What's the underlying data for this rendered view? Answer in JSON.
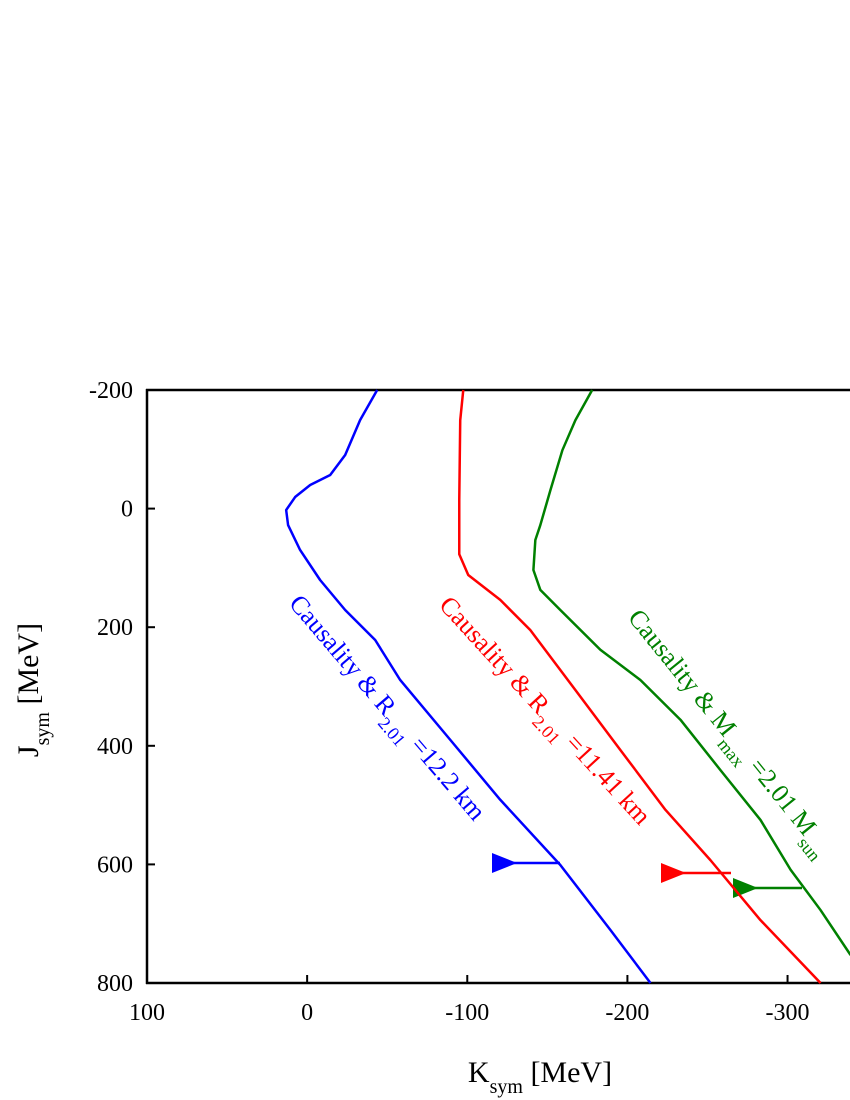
{
  "chart_data": {
    "type": "line",
    "x_label": [
      "K",
      "sym",
      " [MeV]"
    ],
    "y_label": [
      "J",
      "sym",
      " [MeV]"
    ],
    "xlim": [
      100,
      -339
    ],
    "ylim": [
      800,
      -200
    ],
    "xticks": [
      100,
      0,
      -100,
      -200,
      -300
    ],
    "yticks": [
      -200,
      0,
      200,
      400,
      600,
      800
    ],
    "series": [
      {
        "color": "#0000ff",
        "x": [
          -43.75,
          -33.1,
          -23.75,
          -14.4,
          -1.9,
          7.5,
          13.1,
          11.9,
          4.4,
          -8.1,
          -23.75,
          -42.5,
          -58.1,
          -89.4,
          -120.6,
          -158.1,
          -189.4,
          -214.4
        ],
        "values": [
          -200,
          -149.4,
          -90.4,
          -56.6,
          -39.8,
          -19.5,
          2.4,
          27.7,
          69.8,
          120.4,
          171,
          221.6,
          289,
          390,
          491,
          601,
          710.6,
          800
        ]
      },
      {
        "color": "#ff0000",
        "x": [
          -97.5,
          -95.6,
          -95,
          -95,
          -100.6,
          -120.6,
          -139.4,
          -167.5,
          -195.6,
          -223.75,
          -251.9,
          -283.1,
          -320.6
        ],
        "values": [
          -200,
          -149,
          -15.7,
          77,
          112,
          154,
          205,
          306,
          407,
          508,
          593,
          694,
          800
        ]
      },
      {
        "color": "#008000",
        "x": [
          -178,
          -167.5,
          -159.4,
          -151.9,
          -145.6,
          -142.5,
          -141.3,
          -145.6,
          -158.1,
          -183.1,
          -208.1,
          -233.1,
          -258.1,
          -283.1,
          -301.9,
          -320.6,
          -339.4
        ],
        "values": [
          -200,
          -149,
          -98.5,
          -31,
          28,
          53,
          103.5,
          137,
          171,
          238,
          289,
          356,
          441,
          525,
          609,
          677,
          753
        ]
      }
    ],
    "annotations": [
      {
        "color": "#0000ff",
        "parts": [
          "Causality & R",
          "2.01",
          " =12.2 km"
        ]
      },
      {
        "color": "#ff0000",
        "parts": [
          "Causality & R",
          "2.01",
          " =11.41 km"
        ]
      },
      {
        "color": "#008000",
        "parts": [
          "Causality & M",
          "max",
          " =2.01 M",
          "sun"
        ]
      }
    ]
  }
}
